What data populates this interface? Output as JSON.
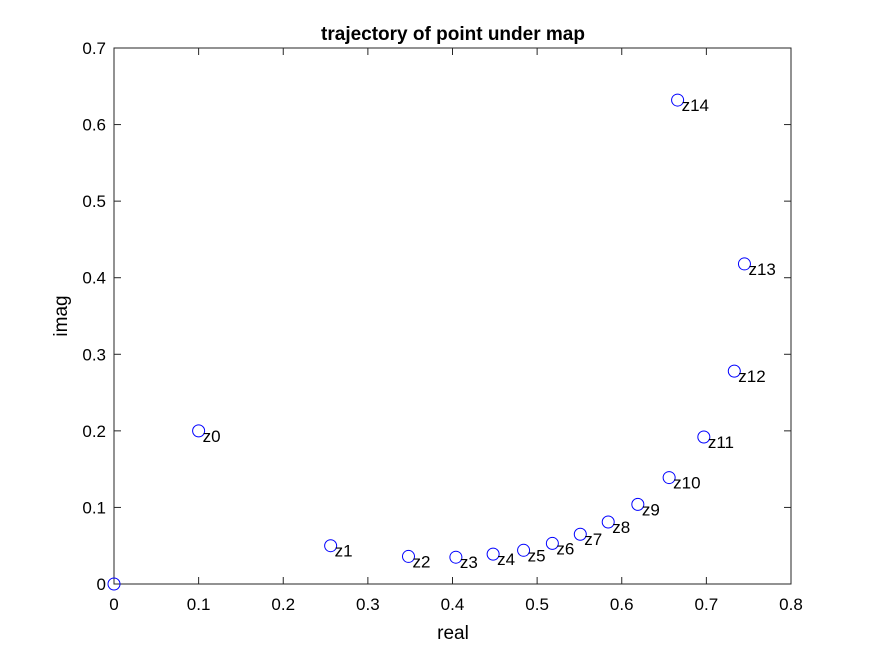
{
  "chart_data": {
    "type": "scatter",
    "title": "trajectory of point under map",
    "xlabel": "real",
    "ylabel": "imag",
    "xlim": [
      0,
      0.8
    ],
    "ylim": [
      0,
      0.7
    ],
    "x_ticks": [
      0,
      0.1,
      0.2,
      0.3,
      0.4,
      0.5,
      0.6,
      0.7,
      0.8
    ],
    "y_ticks": [
      0,
      0.1,
      0.2,
      0.3,
      0.4,
      0.5,
      0.6,
      0.7
    ],
    "x_tick_labels": [
      "0",
      "0.1",
      "0.2",
      "0.3",
      "0.4",
      "0.5",
      "0.6",
      "0.7",
      "0.8"
    ],
    "y_tick_labels": [
      "0",
      "0.1",
      "0.2",
      "0.3",
      "0.4",
      "0.5",
      "0.6",
      "0.7"
    ],
    "grid": false,
    "marker": "open-circle",
    "marker_color": "#0000ff",
    "points": [
      {
        "x": 0.0,
        "y": 0.0,
        "label": ""
      },
      {
        "x": 0.1,
        "y": 0.2,
        "label": "z0"
      },
      {
        "x": 0.256,
        "y": 0.05,
        "label": "z1"
      },
      {
        "x": 0.348,
        "y": 0.036,
        "label": "z2"
      },
      {
        "x": 0.404,
        "y": 0.035,
        "label": "z3"
      },
      {
        "x": 0.448,
        "y": 0.039,
        "label": "z4"
      },
      {
        "x": 0.484,
        "y": 0.044,
        "label": "z5"
      },
      {
        "x": 0.518,
        "y": 0.053,
        "label": "z6"
      },
      {
        "x": 0.551,
        "y": 0.065,
        "label": "z7"
      },
      {
        "x": 0.584,
        "y": 0.081,
        "label": "z8"
      },
      {
        "x": 0.619,
        "y": 0.104,
        "label": "z9"
      },
      {
        "x": 0.656,
        "y": 0.139,
        "label": "z10"
      },
      {
        "x": 0.697,
        "y": 0.192,
        "label": "z11"
      },
      {
        "x": 0.733,
        "y": 0.278,
        "label": "z12"
      },
      {
        "x": 0.745,
        "y": 0.418,
        "label": "z13"
      },
      {
        "x": 0.666,
        "y": 0.632,
        "label": "z14"
      }
    ]
  }
}
